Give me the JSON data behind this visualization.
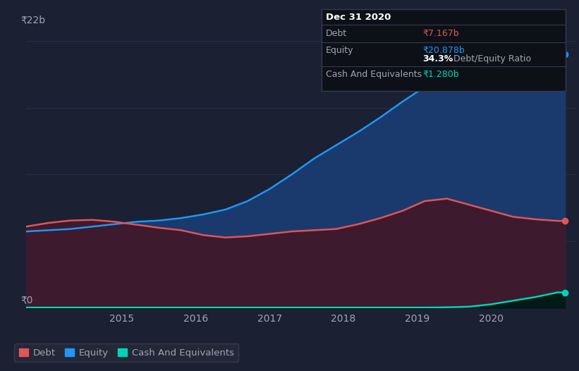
{
  "background_color": "#1c2033",
  "plot_bg_color": "#1c2033",
  "grid_color": "#2a2f45",
  "text_color": "#9da5b4",
  "ylabel_22b": "₹22b",
  "ylabel_0": "₹0",
  "xlim": [
    2013.7,
    2021.15
  ],
  "ylim": [
    0,
    22
  ],
  "equity_x": [
    2013.7,
    2014.0,
    2014.3,
    2014.6,
    2014.9,
    2015.2,
    2015.5,
    2015.8,
    2016.1,
    2016.4,
    2016.7,
    2017.0,
    2017.3,
    2017.6,
    2017.9,
    2018.2,
    2018.5,
    2018.8,
    2019.1,
    2019.4,
    2019.7,
    2020.0,
    2020.3,
    2020.6,
    2020.9,
    2021.0
  ],
  "equity_y": [
    6.3,
    6.4,
    6.5,
    6.7,
    6.9,
    7.1,
    7.2,
    7.4,
    7.7,
    8.1,
    8.8,
    9.8,
    11.0,
    12.3,
    13.4,
    14.5,
    15.7,
    17.0,
    18.2,
    19.0,
    19.5,
    19.9,
    20.4,
    20.7,
    20.878,
    20.878
  ],
  "debt_x": [
    2013.7,
    2014.0,
    2014.3,
    2014.6,
    2014.9,
    2015.2,
    2015.5,
    2015.8,
    2016.1,
    2016.4,
    2016.7,
    2017.0,
    2017.3,
    2017.6,
    2017.9,
    2018.2,
    2018.5,
    2018.8,
    2019.1,
    2019.4,
    2019.7,
    2020.0,
    2020.3,
    2020.6,
    2020.9,
    2021.0
  ],
  "debt_y": [
    6.7,
    7.0,
    7.2,
    7.25,
    7.1,
    6.85,
    6.6,
    6.4,
    6.0,
    5.8,
    5.9,
    6.1,
    6.3,
    6.4,
    6.5,
    6.9,
    7.4,
    8.0,
    8.8,
    9.0,
    8.5,
    8.0,
    7.5,
    7.3,
    7.167,
    7.167
  ],
  "cash_x": [
    2013.7,
    2014.0,
    2014.3,
    2014.6,
    2014.9,
    2015.2,
    2015.5,
    2015.8,
    2016.1,
    2016.4,
    2016.7,
    2017.0,
    2017.3,
    2017.6,
    2017.9,
    2018.2,
    2018.5,
    2018.8,
    2019.1,
    2019.4,
    2019.7,
    2020.0,
    2020.3,
    2020.6,
    2020.9,
    2021.0
  ],
  "cash_y": [
    0.03,
    0.03,
    0.03,
    0.03,
    0.03,
    0.03,
    0.03,
    0.03,
    0.03,
    0.03,
    0.03,
    0.03,
    0.03,
    0.03,
    0.03,
    0.03,
    0.03,
    0.03,
    0.03,
    0.05,
    0.1,
    0.3,
    0.6,
    0.9,
    1.28,
    1.28
  ],
  "equity_color": "#2196f3",
  "equity_fill": "#1a3a6e",
  "debt_color": "#e05555",
  "debt_fill": "#3d1a2e",
  "cash_color": "#00d4b4",
  "cash_fill": "#001a16",
  "tooltip_bg": "#0d1117",
  "tooltip_border": "#333a52",
  "tooltip_title": "Dec 31 2020",
  "tooltip_debt_label": "Debt",
  "tooltip_debt_value": "₹7.167b",
  "tooltip_equity_label": "Equity",
  "tooltip_equity_value": "₹20.878b",
  "tooltip_ratio_bold": "34.3%",
  "tooltip_ratio_text": " Debt/Equity Ratio",
  "tooltip_cash_label": "Cash And Equivalents",
  "tooltip_cash_value": "₹1.280b",
  "legend_debt_label": "Debt",
  "legend_equity_label": "Equity",
  "legend_cash_label": "Cash And Equivalents"
}
